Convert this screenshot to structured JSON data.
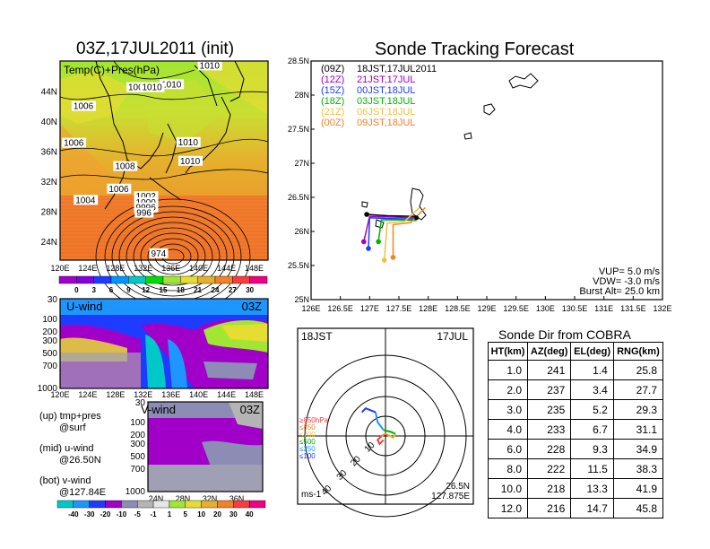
{
  "left_title": "03Z,17JUL2011 (init)",
  "right_title": "Sonde Tracking Forecast",
  "map_panel": {
    "label": "Temp(C)+Pres(hPa)",
    "lat_ticks": [
      "44N",
      "40N",
      "36N",
      "32N",
      "28N",
      "24N"
    ],
    "lon_ticks": [
      "120E",
      "124E",
      "128E",
      "132E",
      "136E",
      "140E",
      "144E",
      "148E"
    ],
    "isobars": [
      {
        "text": "1010",
        "lon": 134.5,
        "lat": 44.5
      },
      {
        "text": "1010",
        "lon": 140.0,
        "lat": 47.0
      },
      {
        "text": "100",
        "lon": 129.7,
        "lat": 44.1
      },
      {
        "text": "1010",
        "lon": 131.7,
        "lat": 44.1
      },
      {
        "text": "1006",
        "lon": 121.8,
        "lat": 41.6
      },
      {
        "text": "1006",
        "lon": 120.4,
        "lat": 36.7
      },
      {
        "text": "1010",
        "lon": 136.9,
        "lat": 36.8
      },
      {
        "text": "1010",
        "lon": 137.2,
        "lat": 34.3
      },
      {
        "text": "1008",
        "lon": 127.8,
        "lat": 33.6
      },
      {
        "text": "1006",
        "lon": 126.9,
        "lat": 30.6
      },
      {
        "text": "1004",
        "lon": 122.1,
        "lat": 29.1
      },
      {
        "text": "1002",
        "lon": 130.8,
        "lat": 29.6
      },
      {
        "text": "1000",
        "lon": 130.8,
        "lat": 28.8
      },
      {
        "text": "9996",
        "lon": 130.8,
        "lat": 28.1
      },
      {
        "text": "996",
        "lon": 130.9,
        "lat": 27.4
      },
      {
        "text": "974",
        "lon": 133.0,
        "lat": 22.0
      }
    ],
    "colorbar": {
      "labels": [
        "0",
        "3",
        "6",
        "9",
        "12",
        "15",
        "18",
        "21",
        "24",
        "27",
        "30"
      ],
      "colors": [
        "#a000c8",
        "#8200dc",
        "#1e3cff",
        "#0096ff",
        "#00c8c8",
        "#00dc00",
        "#a0e632",
        "#e6dc32",
        "#e6af2d",
        "#f08228",
        "#fa3c3c",
        "#f00082"
      ]
    }
  },
  "u_panel": {
    "label": "U-wind",
    "time": "03Z",
    "p_ticks": [
      "30",
      "100",
      "200",
      "300",
      "500",
      "700",
      "1000"
    ],
    "lon_ticks": [
      "120E",
      "124E",
      "128E",
      "132E",
      "136E",
      "140E",
      "144E",
      "148E"
    ]
  },
  "v_panel": {
    "label": "V-wind",
    "time": "03Z",
    "p_ticks": [
      "30",
      "100",
      "200",
      "300",
      "500",
      "700",
      "1000"
    ],
    "lat_ticks": [
      "24N",
      "28N",
      "32N",
      "36N"
    ],
    "colorbar": {
      "labels": [
        "-40",
        "-30",
        "-20",
        "-10",
        "-5",
        "-1",
        "1",
        "5",
        "10",
        "20",
        "30",
        "40"
      ],
      "colors": [
        "#00c8c8",
        "#1e96ff",
        "#1e3cff",
        "#a000c8",
        "#8c8cb4",
        "#b4b4b4",
        "#e6e6e6",
        "#a0e632",
        "#e6dc32",
        "#e6af2d",
        "#f08228",
        "#fa3c3c",
        "#f00082"
      ]
    }
  },
  "notes": [
    {
      "a": "(up) tmp+pres",
      "b": "@surf"
    },
    {
      "a": "(mid) u-wind",
      "b": "@26.50N"
    },
    {
      "a": "(bot) v-wind",
      "b": "@127.84E"
    }
  ],
  "track_panel": {
    "legend": [
      {
        "run": "(09Z)",
        "text": "18JST,17JUL2011",
        "color": "#000000"
      },
      {
        "run": "(12Z)",
        "text": "21JST,17JUL",
        "color": "#a000c8"
      },
      {
        "run": "(15Z)",
        "text": "00JST,18JUL",
        "color": "#1e3cff"
      },
      {
        "run": "(18Z)",
        "text": "03JST,18JUL",
        "color": "#00b400"
      },
      {
        "run": "(21Z)",
        "text": "06JST,18JUL",
        "color": "#f0c040"
      },
      {
        "run": "(00Z)",
        "text": "09JST,18JUL",
        "color": "#f08228"
      }
    ],
    "lat_ticks": [
      "28.5N",
      "28N",
      "27.5N",
      "27N",
      "26.5N",
      "26N",
      "25.5N",
      "25N"
    ],
    "lon_ticks": [
      "126E",
      "126.5E",
      "127E",
      "127.5E",
      "128E",
      "128.5E",
      "129E",
      "129.5E",
      "130E",
      "130.5E",
      "131E",
      "131.5E",
      "132E"
    ],
    "params": [
      "VUP= 5.0 m/s",
      "VDW= -3.0 m/s",
      "Burst Alt= 25.0 km"
    ]
  },
  "chart_data": [
    {
      "type": "line",
      "panel": "Sonde Tracking Forecast",
      "xlim": [
        126.0,
        132.0
      ],
      "ylim": [
        25.0,
        28.5
      ],
      "launch": {
        "lon": 127.8,
        "lat": 26.2
      },
      "series": [
        {
          "name": "(09Z)",
          "color": "#000000",
          "points": [
            [
              127.8,
              26.22
            ],
            [
              127.3,
              26.23
            ],
            [
              126.95,
              26.25
            ]
          ]
        },
        {
          "name": "(12Z)",
          "color": "#a000c8",
          "points": [
            [
              127.8,
              26.2
            ],
            [
              127.4,
              26.21
            ],
            [
              127.0,
              26.22
            ],
            [
              126.9,
              25.85
            ]
          ]
        },
        {
          "name": "(15Z)",
          "color": "#1e3cff",
          "points": [
            [
              127.8,
              26.18
            ],
            [
              127.3,
              26.19
            ],
            [
              127.0,
              26.2
            ],
            [
              126.98,
              25.75
            ]
          ]
        },
        {
          "name": "(18Z)",
          "color": "#00b400",
          "points": [
            [
              127.8,
              26.16
            ],
            [
              127.5,
              26.17
            ],
            [
              127.2,
              26.17
            ],
            [
              127.15,
              25.85
            ]
          ]
        },
        {
          "name": "(21Z)",
          "color": "#f0c040",
          "points": [
            [
              127.85,
              26.35
            ],
            [
              127.6,
              26.15
            ],
            [
              127.3,
              26.12
            ],
            [
              127.25,
              25.58
            ]
          ]
        },
        {
          "name": "(00Z)",
          "color": "#f08228",
          "points": [
            [
              127.95,
              26.35
            ],
            [
              127.7,
              26.13
            ],
            [
              127.4,
              26.1
            ],
            [
              127.4,
              25.62
            ]
          ]
        }
      ]
    },
    {
      "type": "table",
      "panel": "Sonde Dir from COBRA",
      "title": "Sonde Dir from COBRA",
      "columns": [
        "HT(km)",
        "AZ(deg)",
        "EL(deg)",
        "RNG(km)"
      ],
      "rows": [
        [
          "1.0",
          "241",
          "1.4",
          "25.8"
        ],
        [
          "2.0",
          "237",
          "3.4",
          "27.7"
        ],
        [
          "3.0",
          "235",
          "5.2",
          "29.3"
        ],
        [
          "4.0",
          "233",
          "6.7",
          "31.1"
        ],
        [
          "6.0",
          "228",
          "9.3",
          "34.9"
        ],
        [
          "8.0",
          "222",
          "11.5",
          "38.3"
        ],
        [
          "10.0",
          "218",
          "13.3",
          "41.9"
        ],
        [
          "12.0",
          "216",
          "14.7",
          "45.8"
        ]
      ]
    },
    {
      "type": "line",
      "panel": "hodograph",
      "time_left": "18JST",
      "time_right": "17JUL",
      "ring_labels": [
        "10",
        "20",
        "30",
        "40"
      ],
      "units": "ms-1",
      "location": [
        "26.5N",
        "127.875E"
      ],
      "layers": [
        {
          "name": "≥850hPa",
          "color": "#fa3c3c"
        },
        {
          "name": "≤850",
          "color": "#f08228"
        },
        {
          "name": "≤700",
          "color": "#f0c040"
        },
        {
          "name": "≤500",
          "color": "#00b400"
        },
        {
          "name": "≤250",
          "color": "#1e96ff"
        },
        {
          "name": "≤100",
          "color": "#1e3cff"
        }
      ],
      "segments": [
        {
          "color": "#fa3c3c",
          "uv": [
            [
              -1,
              -2
            ],
            [
              -3,
              -4
            ],
            [
              -4,
              -2
            ],
            [
              -2,
              0
            ]
          ]
        },
        {
          "color": "#f08228",
          "uv": [
            [
              -2,
              0
            ],
            [
              0,
              1
            ],
            [
              2,
              0
            ]
          ]
        },
        {
          "color": "#f0c040",
          "uv": [
            [
              2,
              0
            ],
            [
              4,
              -1
            ],
            [
              5,
              1
            ]
          ]
        },
        {
          "color": "#00b400",
          "uv": [
            [
              5,
              1
            ],
            [
              3,
              2
            ],
            [
              -1,
              3
            ]
          ]
        },
        {
          "color": "#1e96ff",
          "uv": [
            [
              -1,
              3
            ],
            [
              -4,
              7
            ],
            [
              -5,
              12
            ]
          ]
        },
        {
          "color": "#1e3cff",
          "uv": [
            [
              -5,
              12
            ],
            [
              -10,
              14
            ],
            [
              -12,
              12
            ]
          ]
        }
      ]
    }
  ]
}
